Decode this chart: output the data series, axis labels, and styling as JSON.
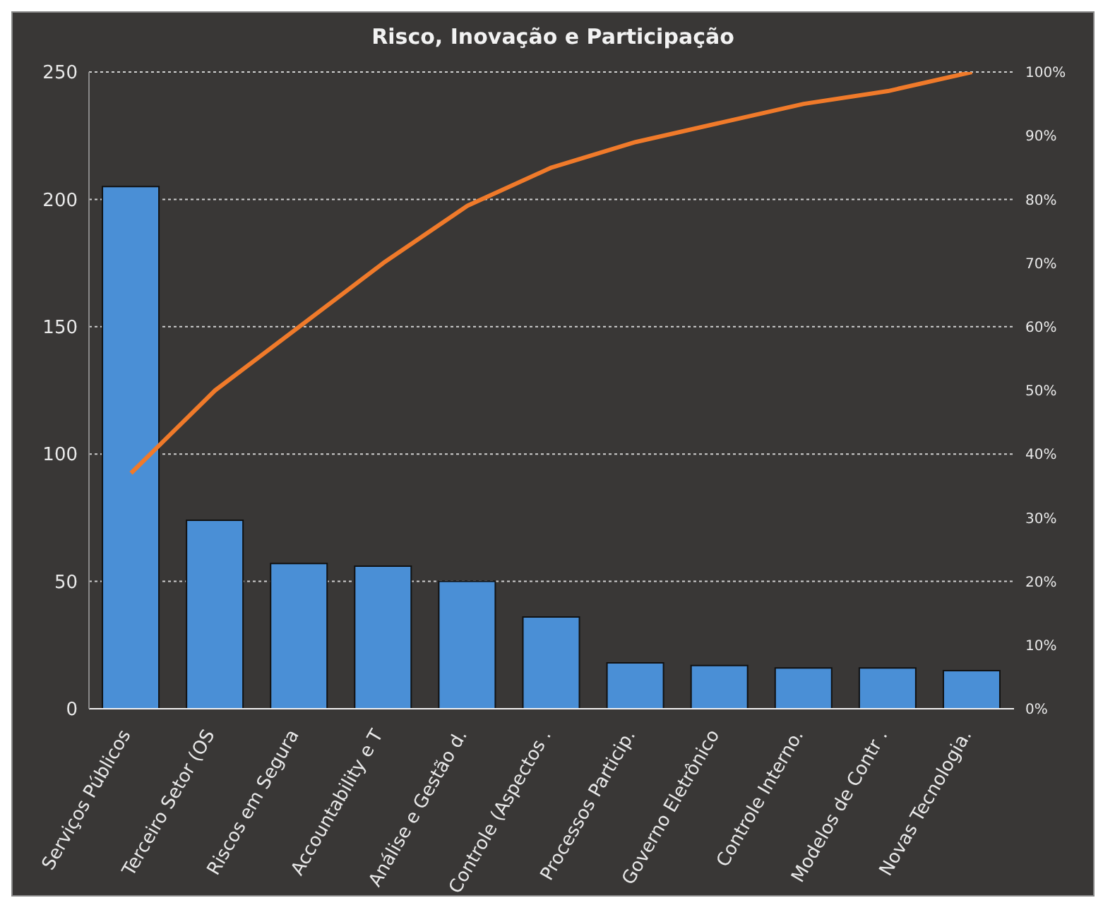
{
  "chart_data": {
    "type": "bar",
    "title": "Risco, Inovação e Participação",
    "categories": [
      "Serviços Públicos",
      "Terceiro Setor (OS",
      "Riscos em Segura",
      "Accountability e T",
      "Análise e Gestão d.",
      "Controle (Aspectos .",
      "Processos Particip.",
      "Governo Eletrônico",
      "Controle Interno.",
      "Modelos de Contr .",
      "Novas Tecnologia."
    ],
    "series": [
      {
        "color": "#4a8fd6",
        "values": [
          205,
          74,
          57,
          56,
          50,
          36,
          18,
          17,
          16,
          16,
          15
        ]
      },
      {
        "type": "line",
        "axis": "y2",
        "color": "#f07a2a",
        "values": [
          37,
          50,
          60,
          70,
          79,
          85,
          89,
          92,
          95,
          97,
          100
        ]
      }
    ],
    "ylim": [
      0,
      250
    ],
    "yticks": [
      0,
      50,
      100,
      150,
      200,
      250
    ],
    "y2lim": [
      0,
      100
    ],
    "y2ticks": [
      {
        "value": 0,
        "label": "0%"
      },
      {
        "value": 10,
        "label": "10%"
      },
      {
        "value": 20,
        "label": "20%"
      },
      {
        "value": 30,
        "label": "30%"
      },
      {
        "value": 40,
        "label": "40%"
      },
      {
        "value": 50,
        "label": "50%"
      },
      {
        "value": 60,
        "label": "60%"
      },
      {
        "value": 70,
        "label": "70%"
      },
      {
        "value": 80,
        "label": "80%"
      },
      {
        "value": 90,
        "label": "90%"
      },
      {
        "value": 100,
        "label": "100%"
      }
    ],
    "grid": "y",
    "legend": false,
    "marker": "none",
    "line_style": "solid"
  }
}
